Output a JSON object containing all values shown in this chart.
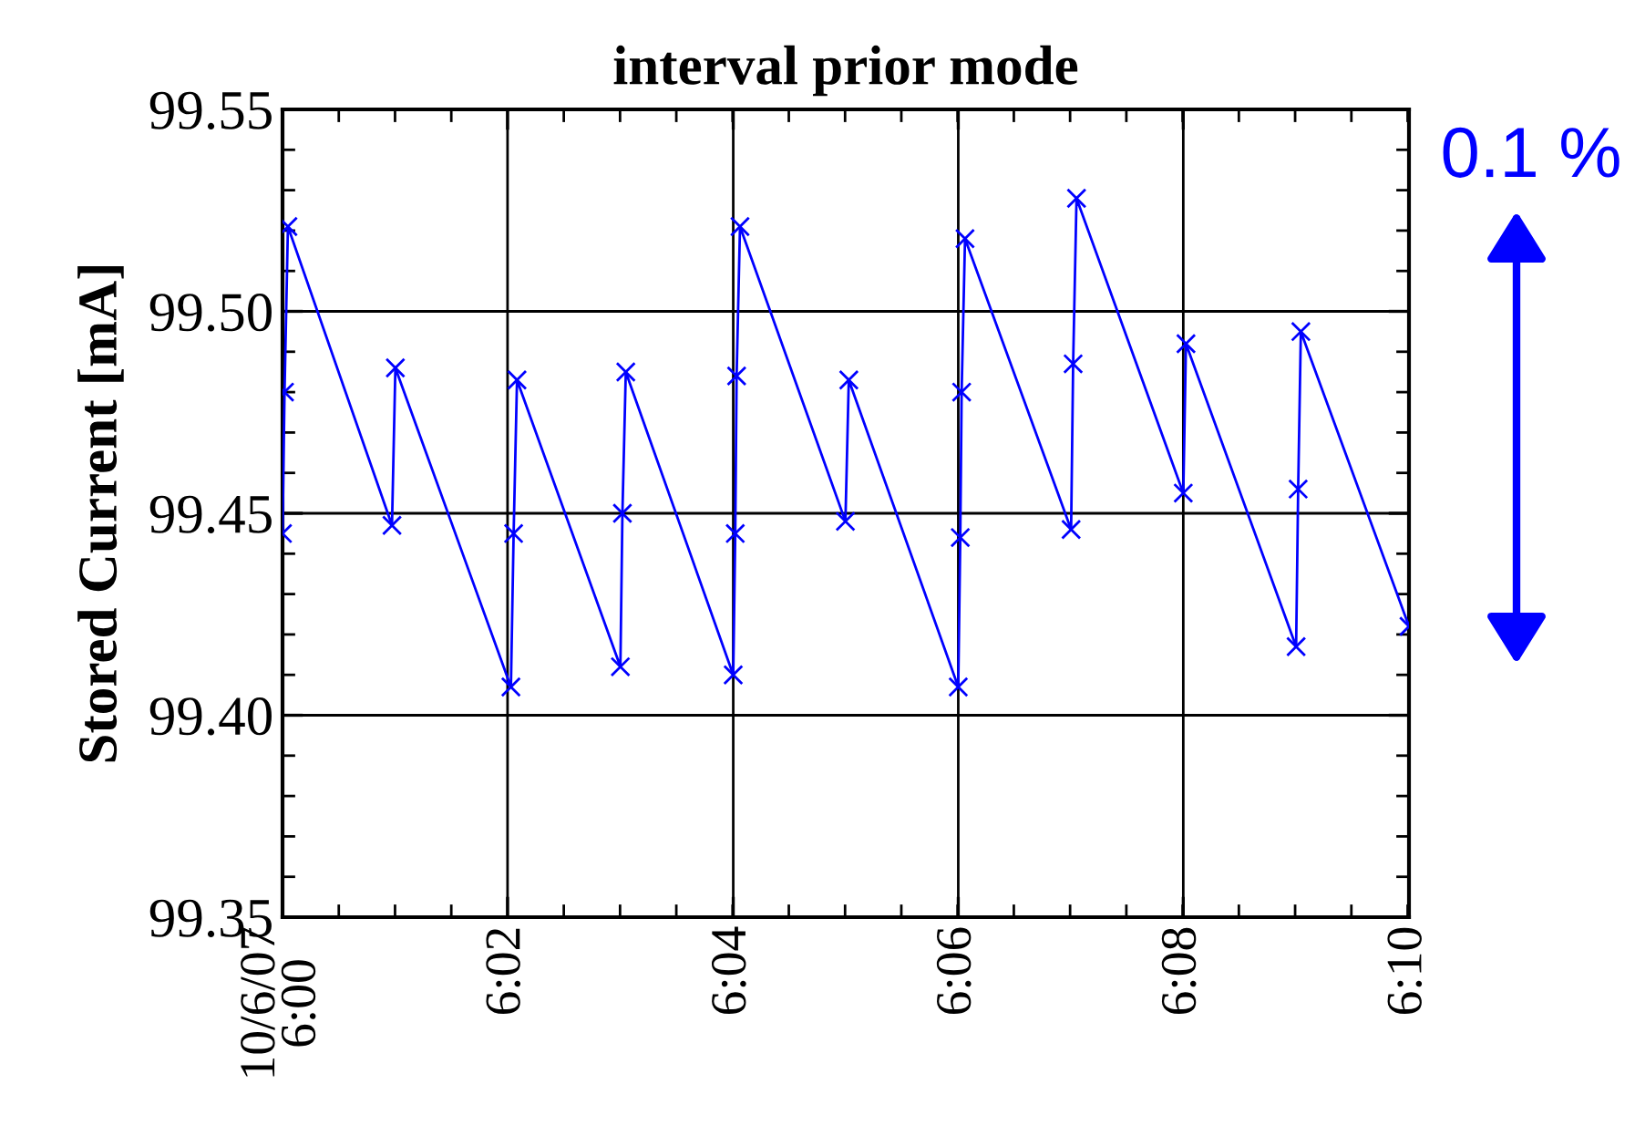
{
  "chart_data": {
    "type": "line",
    "title": "interval prior mode",
    "ylabel": "Stored Current [mA]",
    "annotations": [
      "0.1 %"
    ],
    "x": [
      6.0,
      6.0003,
      6.0008,
      6.0162,
      6.0167,
      6.0338,
      6.0342,
      6.0347,
      6.05,
      6.0503,
      6.0508,
      6.0667,
      6.067,
      6.0672,
      6.0677,
      6.0833,
      6.0838,
      6.1,
      6.1003,
      6.1005,
      6.101,
      6.1167,
      6.117,
      6.1175,
      6.1333,
      6.1337,
      6.15,
      6.1503,
      6.1507,
      6.1667
    ],
    "series": [
      {
        "color": "#0000ff",
        "values": [
          99.445,
          99.48,
          99.521,
          99.447,
          99.486,
          99.407,
          99.445,
          99.483,
          99.412,
          99.45,
          99.485,
          99.41,
          99.445,
          99.484,
          99.521,
          99.448,
          99.483,
          99.407,
          99.444,
          99.48,
          99.518,
          99.446,
          99.487,
          99.528,
          99.455,
          99.492,
          99.417,
          99.456,
          99.495,
          99.422
        ]
      }
    ],
    "xlim": [
      6.0,
      6.1667
    ],
    "xticks": [
      {
        "value": 6.0,
        "label": "10/6/07\n6:00"
      },
      {
        "value": 6.0333,
        "label": "6:02"
      },
      {
        "value": 6.0667,
        "label": "6:04"
      },
      {
        "value": 6.1,
        "label": "6:06"
      },
      {
        "value": 6.1333,
        "label": "6:08"
      },
      {
        "value": 6.1667,
        "label": "6:10"
      }
    ],
    "ylim": [
      99.35,
      99.55
    ],
    "yticks": [
      {
        "value": 99.35,
        "label": "99.35"
      },
      {
        "value": 99.4,
        "label": "99.40"
      },
      {
        "value": 99.45,
        "label": "99.45"
      },
      {
        "value": 99.5,
        "label": "99.50"
      },
      {
        "value": 99.55,
        "label": "99.55"
      }
    ],
    "grid": true,
    "marker": "cross",
    "line_style": "solid",
    "legend": false
  }
}
